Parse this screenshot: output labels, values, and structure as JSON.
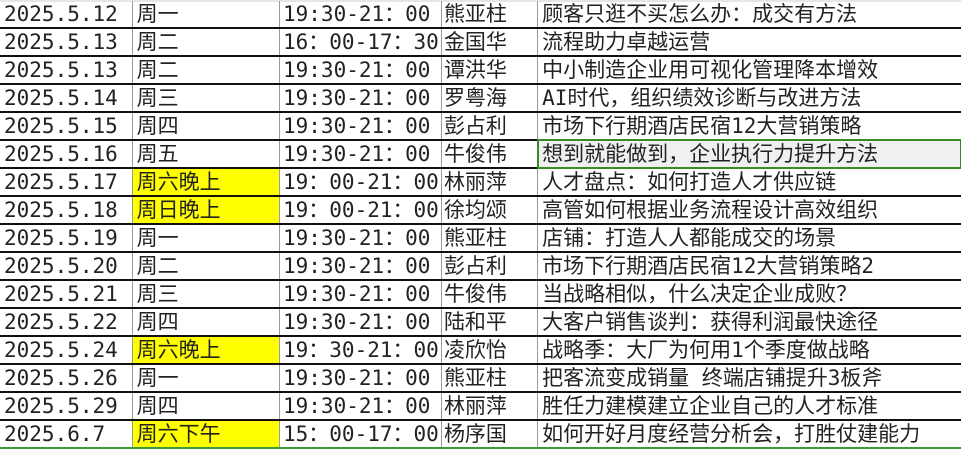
{
  "colors": {
    "highlight": "#ffff00",
    "selection_border": "#3a8a2a",
    "selected_cell_bg": "#f0f0f0"
  },
  "rows": [
    {
      "date": "2025.5.12",
      "day": "周一",
      "time": "19:30-21：00",
      "speaker": "熊亚柱",
      "topic": "顾客只逛不买怎么办：成交有方法",
      "highlight": false
    },
    {
      "date": "2025.5.13",
      "day": "周二",
      "time": "16：00-17：30",
      "speaker": "金国华",
      "topic": "流程助力卓越运营",
      "highlight": false
    },
    {
      "date": "2025.5.13",
      "day": "周二",
      "time": "19:30-21：00",
      "speaker": "谭洪华",
      "topic": "中小制造企业用可视化管理降本增效",
      "highlight": false
    },
    {
      "date": "2025.5.14",
      "day": "周三",
      "time": "19:30-21：00",
      "speaker": "罗粤海",
      "topic": "AI时代，组织绩效诊断与改进方法",
      "highlight": false
    },
    {
      "date": "2025.5.15",
      "day": "周四",
      "time": "19:30-21：00",
      "speaker": "彭占利",
      "topic": "市场下行期酒店民宿12大营销策略",
      "highlight": false
    },
    {
      "date": "2025.5.16",
      "day": "周五",
      "time": "19:30-21：00",
      "speaker": "牛俊伟",
      "topic": "想到就能做到，企业执行力提升方法",
      "highlight": false,
      "selected": true
    },
    {
      "date": "2025.5.17",
      "day": "周六晚上",
      "time": "19：00-21：00",
      "speaker": "林丽萍",
      "topic": "人才盘点：如何打造人才供应链",
      "highlight": true
    },
    {
      "date": "2025.5.18",
      "day": "周日晚上",
      "time": "19：00-21：00",
      "speaker": "徐均颂",
      "topic": "高管如何根据业务流程设计高效组织",
      "highlight": true
    },
    {
      "date": "2025.5.19",
      "day": "周一",
      "time": "19:30-21：00",
      "speaker": "熊亚柱",
      "topic": "店铺：打造人人都能成交的场景",
      "highlight": false
    },
    {
      "date": "2025.5.20",
      "day": "周二",
      "time": "19:30-21：00",
      "speaker": "彭占利",
      "topic": "市场下行期酒店民宿12大营销策略2",
      "highlight": false
    },
    {
      "date": "2025.5.21",
      "day": "周三",
      "time": "19:30-21：00",
      "speaker": "牛俊伟",
      "topic": "当战略相似，什么决定企业成败？",
      "highlight": false
    },
    {
      "date": "2025.5.22",
      "day": "周四",
      "time": "19:30-21：00",
      "speaker": "陆和平",
      "topic": "大客户销售谈判：获得利润最快途径",
      "highlight": false
    },
    {
      "date": "2025.5.24",
      "day": "周六晚上",
      "time": "19：30-21：00",
      "speaker": "凌欣怡",
      "topic": "战略季：大厂为何用1个季度做战略",
      "highlight": true
    },
    {
      "date": "2025.5.26",
      "day": "周一",
      "time": "19:30-21：00",
      "speaker": "熊亚柱",
      "topic": "把客流变成销量 终端店铺提升3板斧",
      "highlight": false
    },
    {
      "date": "2025.5.29",
      "day": "周四",
      "time": "19:30-21：00",
      "speaker": "林丽萍",
      "topic": "胜任力建模建立企业自己的人才标准",
      "highlight": false
    },
    {
      "date": "2025.6.7",
      "day": "周六下午",
      "time": "15：00-17：00",
      "speaker": "杨序国",
      "topic": "如何开好月度经营分析会，打胜仗建能力",
      "highlight": true
    }
  ]
}
